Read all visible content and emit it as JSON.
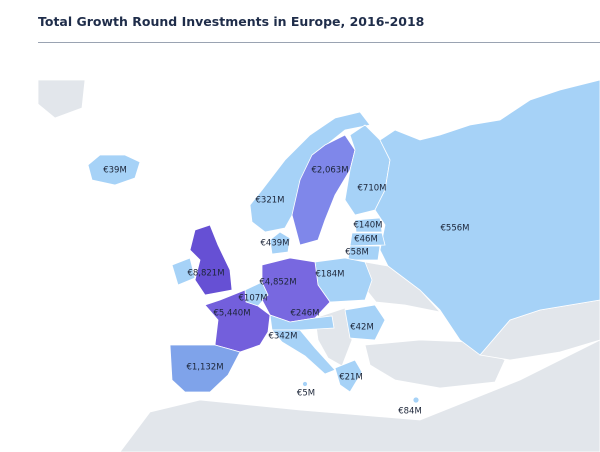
{
  "title": "Total Growth Round Investments in Europe, 2016-2018",
  "regions": [
    {
      "label": "€39M",
      "color": "#a6d2f7"
    },
    {
      "label": "€321M",
      "color": "#a6d2f7"
    },
    {
      "label": "€2,063M",
      "color": "#7f87ea"
    },
    {
      "label": "€710M",
      "color": "#a6d2f7"
    },
    {
      "label": "€556M",
      "color": "#a6d2f7"
    },
    {
      "label": "€439M",
      "color": "#a6d2f7"
    },
    {
      "label": "€140M",
      "color": "#a6d2f7"
    },
    {
      "label": "€46M",
      "color": "#a6d2f7"
    },
    {
      "label": "€58M",
      "color": "#a6d2f7"
    },
    {
      "label": "€184M",
      "color": "#a6d2f7"
    },
    {
      "color": "#a6d2f7"
    },
    {
      "label": "€8,821M",
      "color": "#6650d4"
    },
    {
      "label": "€107M",
      "color": "#a6d2f7"
    },
    {
      "label": "€4,852M",
      "color": "#7868e0"
    },
    {
      "label": "€5,440M",
      "color": "#735fdc"
    },
    {
      "label": "€246M",
      "color": "#a6d2f7"
    },
    {
      "label": "€342M",
      "color": "#a6d2f7"
    },
    {
      "label": "€42M",
      "color": "#a6d2f7"
    },
    {
      "label": "€1,132M",
      "color": "#7fa3ea"
    },
    {
      "label": "€21M",
      "color": "#a6d2f7"
    },
    {
      "label": "€5M",
      "color": "#a6d2f7"
    },
    {
      "label": "€84M",
      "color": "#a6d2f7"
    }
  ]
}
